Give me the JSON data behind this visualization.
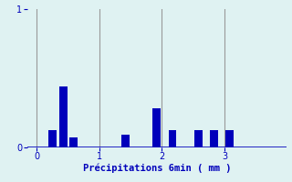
{
  "title": "",
  "xlabel": "Précipitations 6min ( mm )",
  "ylabel": "",
  "bg_color": "#dff2f2",
  "bar_color": "#0000bb",
  "grid_color": "#999999",
  "xlabel_color": "#0000bb",
  "tick_color": "#0000bb",
  "spine_color": "#0000bb",
  "ylim": [
    0,
    1.0
  ],
  "xlim": [
    -0.15,
    4.0
  ],
  "xticks": [
    0,
    1,
    2,
    3
  ],
  "yticks": [
    0,
    1
  ],
  "bar_positions": [
    0.25,
    0.42,
    0.58,
    1.42,
    1.92,
    2.17,
    2.58,
    2.83,
    3.08
  ],
  "bar_heights": [
    0.12,
    0.44,
    0.07,
    0.09,
    0.28,
    0.12,
    0.12,
    0.12,
    0.12
  ],
  "bar_width": 0.13
}
